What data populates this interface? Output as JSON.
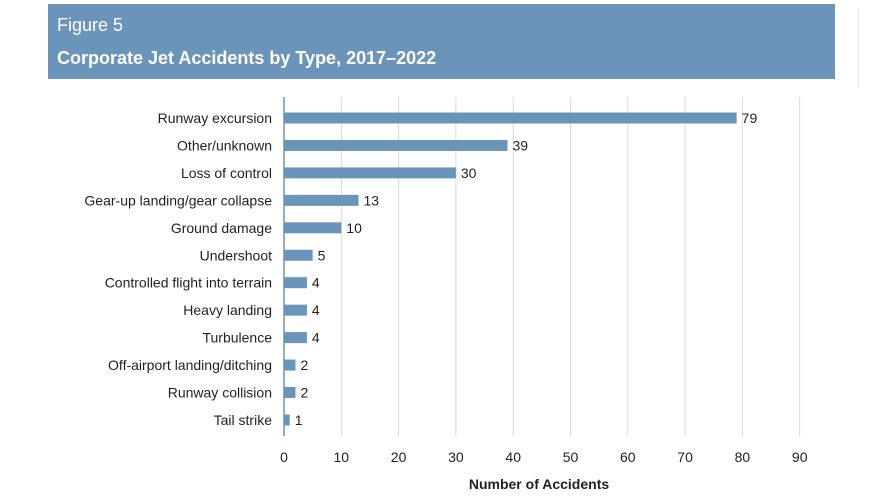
{
  "figure": {
    "label": "Figure 5",
    "title": "Corporate Jet Accidents by Type, 2017–2022"
  },
  "chart_data": {
    "type": "bar",
    "orientation": "horizontal",
    "title": "Corporate Jet Accidents by Type, 2017–2022",
    "xlabel": "Number of Accidents",
    "ylabel": "",
    "xlim": [
      0,
      90
    ],
    "xticks": [
      0,
      10,
      20,
      30,
      40,
      50,
      60,
      70,
      80,
      90
    ],
    "grid": "vertical",
    "bar_color": "#6b94bb",
    "categories": [
      "Runway excursion",
      "Other/unknown",
      "Loss of control",
      "Gear-up landing/gear collapse",
      "Ground damage",
      "Undershoot",
      "Controlled flight into terrain",
      "Heavy landing",
      "Turbulence",
      "Off-airport landing/ditching",
      "Runway collision",
      "Tail strike"
    ],
    "values": [
      79,
      39,
      30,
      13,
      10,
      5,
      4,
      4,
      4,
      2,
      2,
      1
    ]
  }
}
